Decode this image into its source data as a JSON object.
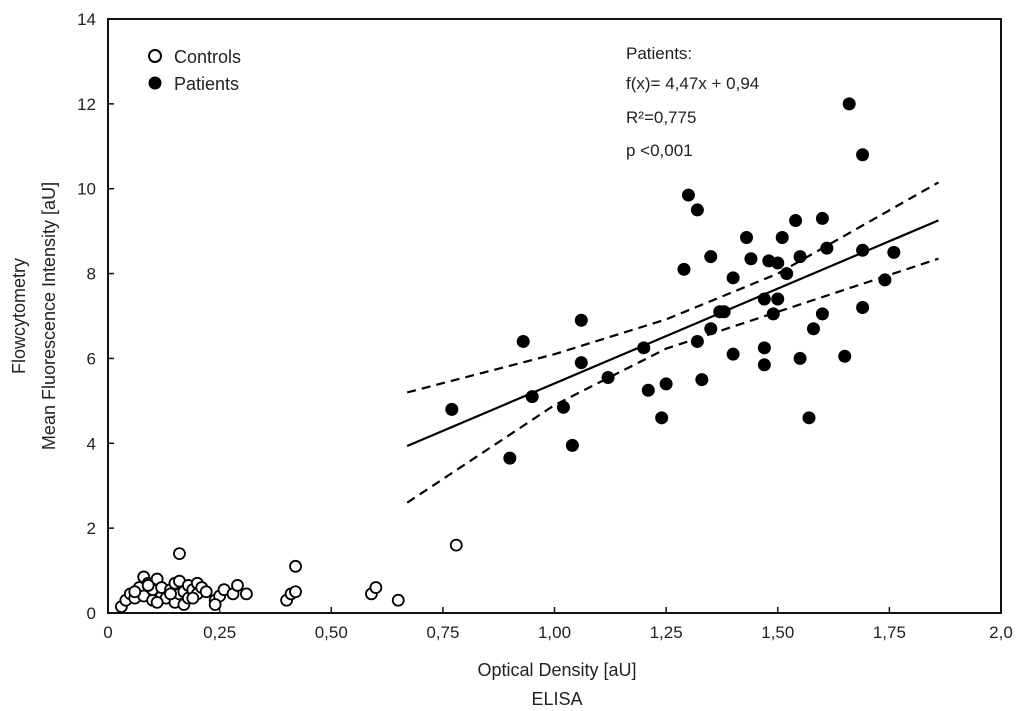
{
  "chart_data": {
    "type": "scatter",
    "xlabel": "Optical Density [aU]",
    "xlabel2": "ELISA",
    "ylabel": "Mean Fluorescence Intensity [aU]",
    "ylabel2": "Flowcytometry",
    "xlim": [
      0,
      2.0
    ],
    "ylim": [
      0,
      14
    ],
    "xticks": [
      0,
      0.25,
      0.5,
      0.75,
      1.0,
      1.25,
      1.5,
      1.75,
      2.0
    ],
    "xtick_labels": [
      "0",
      "0,25",
      "0,50",
      "0,75",
      "1,00",
      "1,25",
      "1,50",
      "1,75",
      "2,0"
    ],
    "yticks": [
      0,
      2,
      4,
      6,
      8,
      10,
      12,
      14
    ],
    "ytick_labels": [
      "0",
      "2",
      "4",
      "6",
      "8",
      "10",
      "12",
      "14"
    ],
    "grid": false,
    "legend_position": "top-left",
    "series": [
      {
        "name": "Controls",
        "marker": "open-circle",
        "x": [
          0.03,
          0.04,
          0.05,
          0.06,
          0.07,
          0.08,
          0.08,
          0.09,
          0.1,
          0.1,
          0.11,
          0.12,
          0.12,
          0.13,
          0.14,
          0.15,
          0.15,
          0.16,
          0.16,
          0.17,
          0.17,
          0.18,
          0.18,
          0.19,
          0.2,
          0.2,
          0.21,
          0.22,
          0.24,
          0.25,
          0.26,
          0.28,
          0.29,
          0.31,
          0.16,
          0.4,
          0.41,
          0.42,
          0.42,
          0.59,
          0.6,
          0.65,
          0.78,
          0.06,
          0.09,
          0.11,
          0.14,
          0.19,
          0.24
        ],
        "y": [
          0.15,
          0.3,
          0.45,
          0.35,
          0.6,
          0.4,
          0.85,
          0.7,
          0.3,
          0.55,
          0.8,
          0.4,
          0.6,
          0.35,
          0.55,
          0.25,
          0.7,
          0.45,
          0.75,
          0.2,
          0.5,
          0.65,
          0.35,
          0.55,
          0.45,
          0.7,
          0.6,
          0.5,
          0.3,
          0.4,
          0.55,
          0.45,
          0.65,
          0.45,
          1.4,
          0.3,
          0.45,
          1.1,
          0.5,
          0.45,
          0.6,
          0.3,
          1.6,
          0.5,
          0.65,
          0.25,
          0.45,
          0.35,
          0.2
        ]
      },
      {
        "name": "Patients",
        "marker": "filled-circle",
        "x": [
          0.77,
          0.9,
          0.93,
          0.95,
          1.02,
          1.04,
          1.06,
          1.06,
          1.12,
          1.2,
          1.21,
          1.24,
          1.25,
          1.29,
          1.3,
          1.32,
          1.32,
          1.33,
          1.35,
          1.35,
          1.37,
          1.38,
          1.4,
          1.4,
          1.43,
          1.44,
          1.47,
          1.47,
          1.47,
          1.48,
          1.49,
          1.5,
          1.5,
          1.51,
          1.52,
          1.54,
          1.55,
          1.55,
          1.57,
          1.58,
          1.6,
          1.6,
          1.61,
          1.65,
          1.66,
          1.69,
          1.69,
          1.69,
          1.74,
          1.76
        ],
        "y": [
          4.8,
          3.65,
          6.4,
          5.1,
          4.85,
          3.95,
          6.9,
          5.9,
          5.55,
          6.25,
          5.25,
          4.6,
          5.4,
          8.1,
          9.85,
          6.4,
          9.5,
          5.5,
          8.4,
          6.7,
          7.1,
          7.1,
          7.9,
          6.1,
          8.85,
          8.35,
          5.85,
          6.25,
          7.4,
          8.3,
          7.05,
          7.4,
          8.25,
          8.85,
          8.0,
          9.25,
          6.0,
          8.4,
          4.6,
          6.7,
          9.3,
          7.05,
          8.6,
          6.05,
          12.0,
          10.8,
          8.55,
          7.2,
          7.85,
          8.5
        ]
      }
    ],
    "fit_line": {
      "name": "Patients fit",
      "slope": 4.47,
      "intercept": 0.94,
      "x_range": [
        0.67,
        1.86
      ],
      "style": "solid"
    },
    "confidence_band": {
      "style": "dashed",
      "upper": {
        "x": [
          0.67,
          1.0,
          1.25,
          1.5,
          1.86
        ],
        "y": [
          5.2,
          6.1,
          6.92,
          8.0,
          10.15
        ]
      },
      "lower": {
        "x": [
          0.67,
          1.0,
          1.25,
          1.5,
          1.86
        ],
        "y": [
          2.6,
          4.9,
          6.23,
          7.1,
          8.35
        ]
      }
    },
    "annotations": [
      "Patients:",
      "f(x)= 4,47x + 0,94",
      "R²=0,775",
      "p <0,001"
    ]
  }
}
